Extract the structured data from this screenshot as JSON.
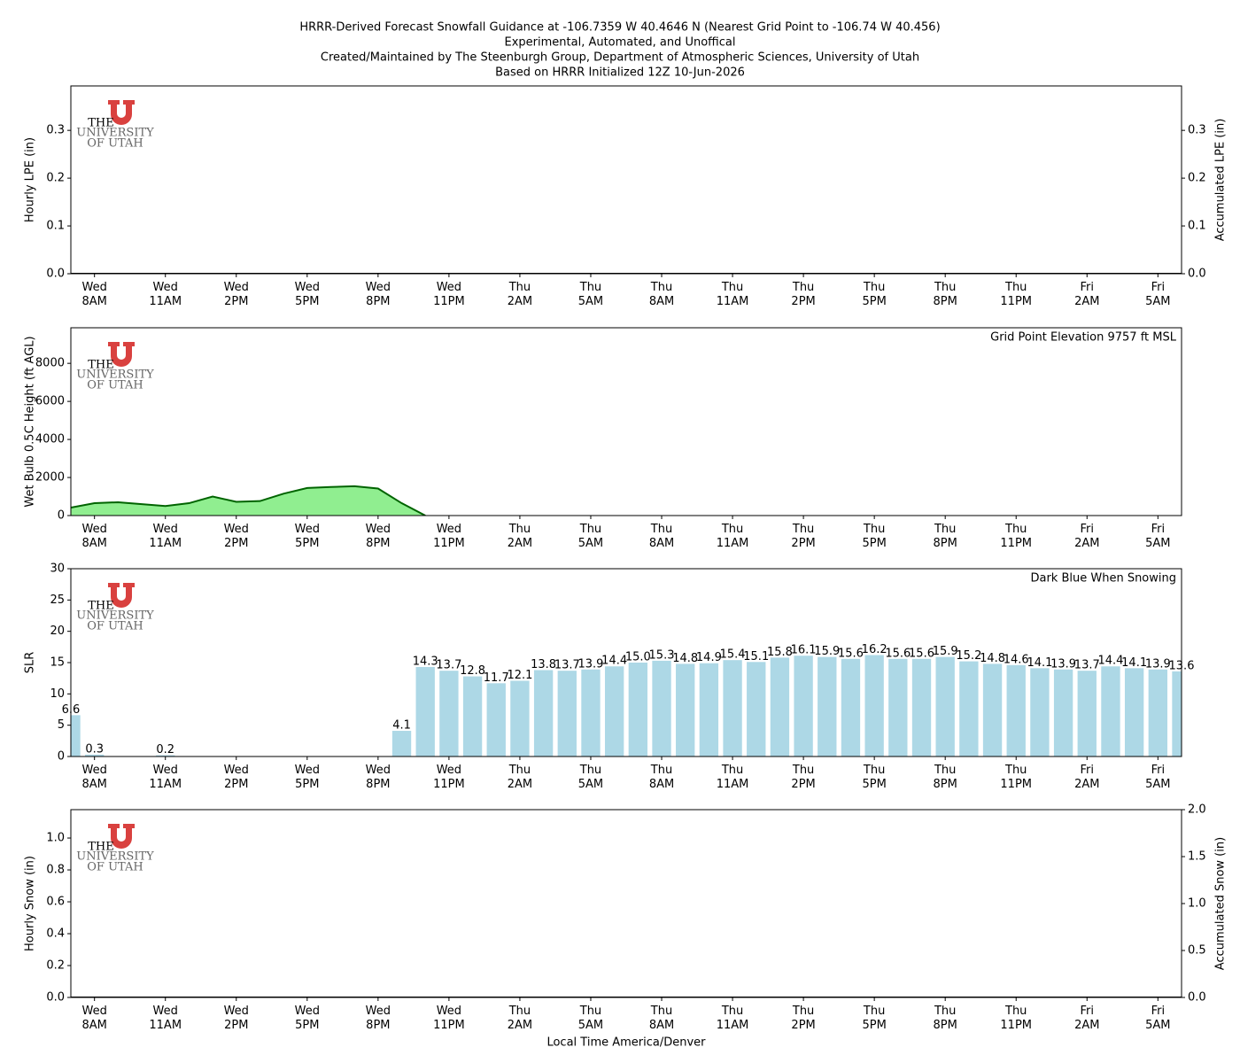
{
  "logo": {
    "line1": "THE",
    "line2": "UNIVERSITY",
    "line3": "OF UTAH"
  },
  "chart_data": [
    {
      "type": "line",
      "title": [
        "HRRR-Derived Forecast Snowfall Guidance at -106.7359 W 40.4646 N (Nearest Grid Point to -106.74 W 40.456)",
        "Experimental, Automated, and Unoffical",
        "Created/Maintained by The Steenburgh Group, Department of Atmospheric Sciences, University of Utah",
        "Based on HRRR Initialized 12Z 10-Jun-2026"
      ],
      "ylabel": "Hourly LPE (in)",
      "y2label": "Accumulated LPE (in)",
      "categories": [
        null,
        "Wed\n8AM",
        null,
        null,
        "Wed\n11AM",
        null,
        null,
        "Wed\n2PM",
        null,
        null,
        "Wed\n5PM",
        null,
        null,
        "Wed\n8PM",
        null,
        null,
        "Wed\n11PM",
        null,
        null,
        "Thu\n2AM",
        null,
        null,
        "Thu\n5AM",
        null,
        null,
        "Thu\n8AM",
        null,
        null,
        "Thu\n11AM",
        null,
        null,
        "Thu\n2PM",
        null,
        null,
        "Thu\n5PM",
        null,
        null,
        "Thu\n8PM",
        null,
        null,
        "Thu\n11PM",
        null,
        null,
        "Fri\n2AM",
        null,
        null,
        "Fri\n5AM",
        null
      ],
      "values": [
        0,
        0,
        0,
        0,
        0,
        0,
        0,
        0,
        0,
        0,
        0,
        0,
        0,
        0,
        0,
        0,
        0,
        0,
        0,
        0,
        0,
        0,
        0,
        0,
        0,
        0,
        0,
        0,
        0,
        0,
        0,
        0,
        0,
        0,
        0,
        0,
        0,
        0,
        0,
        0,
        0,
        0,
        0,
        0,
        0,
        0,
        0,
        0
      ],
      "color": "#000000",
      "ylim": [
        0,
        0.393
      ],
      "yticks": [
        {
          "value": 0,
          "label": "0.0"
        },
        0.1,
        0.2,
        0.3
      ],
      "y2lim": [
        0,
        0.393
      ],
      "y2ticks": [
        {
          "value": 0,
          "label": "0.0"
        },
        0.1,
        0.2,
        0.3
      ]
    },
    {
      "type": "area",
      "ylabel": "Wet Bulb 0.5C Height (ft AGL)",
      "annotation": "Grid Point Elevation 9757 ft MSL",
      "categories": [
        null,
        "Wed\n8AM",
        null,
        null,
        "Wed\n11AM",
        null,
        null,
        "Wed\n2PM",
        null,
        null,
        "Wed\n5PM",
        null,
        null,
        "Wed\n8PM",
        null,
        null,
        "Wed\n11PM",
        null,
        null,
        "Thu\n2AM",
        null,
        null,
        "Thu\n5AM",
        null,
        null,
        "Thu\n8AM",
        null,
        null,
        "Thu\n11AM",
        null,
        null,
        "Thu\n2PM",
        null,
        null,
        "Thu\n5PM",
        null,
        null,
        "Thu\n8PM",
        null,
        null,
        "Thu\n11PM",
        null,
        null,
        "Fri\n2AM",
        null,
        null,
        "Fri\n5AM",
        null
      ],
      "values": [
        420,
        650,
        700,
        600,
        500,
        650,
        1000,
        720,
        760,
        1150,
        1450,
        1500,
        1540,
        1420,
        650,
        0,
        null,
        null,
        null,
        null,
        null,
        null,
        null,
        null,
        null,
        null,
        null,
        null,
        null,
        null,
        null,
        null,
        null,
        null,
        null,
        null,
        null,
        null,
        null,
        null,
        null,
        null,
        null,
        null,
        null,
        null,
        null,
        null
      ],
      "color": "#90ee90",
      "edge_color": "#006400",
      "ylim": [
        0,
        9870
      ],
      "yticks": [
        0,
        2000,
        4000,
        6000,
        8000
      ]
    },
    {
      "type": "bar",
      "ylabel": "SLR",
      "annotation": "Dark Blue When Snowing",
      "categories": [
        null,
        "Wed\n8AM",
        null,
        null,
        "Wed\n11AM",
        null,
        null,
        "Wed\n2PM",
        null,
        null,
        "Wed\n5PM",
        null,
        null,
        "Wed\n8PM",
        null,
        null,
        "Wed\n11PM",
        null,
        null,
        "Thu\n2AM",
        null,
        null,
        "Thu\n5AM",
        null,
        null,
        "Thu\n8AM",
        null,
        null,
        "Thu\n11AM",
        null,
        null,
        "Thu\n2PM",
        null,
        null,
        "Thu\n5PM",
        null,
        null,
        "Thu\n8PM",
        null,
        null,
        "Thu\n11PM",
        null,
        null,
        "Fri\n2AM",
        null,
        null,
        "Fri\n5AM",
        null
      ],
      "values": [
        6.6,
        0.3,
        null,
        null,
        0.2,
        null,
        null,
        null,
        null,
        null,
        null,
        null,
        null,
        null,
        4.1,
        14.3,
        13.7,
        12.8,
        11.7,
        12.1,
        13.8,
        13.7,
        13.9,
        14.4,
        15.0,
        15.3,
        14.8,
        14.9,
        15.4,
        15.1,
        15.8,
        16.1,
        15.9,
        15.6,
        16.2,
        15.6,
        15.6,
        15.9,
        15.2,
        14.8,
        14.6,
        14.1,
        13.9,
        13.7,
        14.4,
        14.1,
        13.9,
        13.6
      ],
      "value_labels": [
        "6.6",
        "0.3",
        null,
        null,
        "0.2",
        null,
        null,
        null,
        null,
        null,
        null,
        null,
        null,
        null,
        "4.1",
        "14.3",
        "13.7",
        "12.8",
        "11.7",
        "12.1",
        "13.8",
        "13.7",
        "13.9",
        "14.4",
        "15.0",
        "15.3",
        "14.8",
        "14.9",
        "15.4",
        "15.1",
        "15.8",
        "16.1",
        "15.9",
        "15.6",
        "16.2",
        "15.6",
        "15.6",
        "15.9",
        "15.2",
        "14.8",
        "14.6",
        "14.1",
        "13.9",
        "13.7",
        "14.4",
        "14.1",
        "13.9",
        "13.6"
      ],
      "color": "#add8e6",
      "ylim": [
        0,
        30
      ],
      "yticks": [
        0,
        5,
        10,
        15,
        20,
        25,
        30
      ]
    },
    {
      "type": "line",
      "ylabel": "Hourly Snow (in)",
      "y2label": "Accumulated Snow (in)",
      "xlabel": "Local Time America/Denver",
      "categories": [
        null,
        "Wed\n8AM",
        null,
        null,
        "Wed\n11AM",
        null,
        null,
        "Wed\n2PM",
        null,
        null,
        "Wed\n5PM",
        null,
        null,
        "Wed\n8PM",
        null,
        null,
        "Wed\n11PM",
        null,
        null,
        "Thu\n2AM",
        null,
        null,
        "Thu\n5AM",
        null,
        null,
        "Thu\n8AM",
        null,
        null,
        "Thu\n11AM",
        null,
        null,
        "Thu\n2PM",
        null,
        null,
        "Thu\n5PM",
        null,
        null,
        "Thu\n8PM",
        null,
        null,
        "Thu\n11PM",
        null,
        null,
        "Fri\n2AM",
        null,
        null,
        "Fri\n5AM",
        null
      ],
      "values": [
        0,
        0,
        0,
        0,
        0,
        0,
        0,
        0,
        0,
        0,
        0,
        0,
        0,
        0,
        0,
        0,
        0,
        0,
        0,
        0,
        0,
        0,
        0,
        0,
        0,
        0,
        0,
        0,
        0,
        0,
        0,
        0,
        0,
        0,
        0,
        0,
        0,
        0,
        0,
        0,
        0,
        0,
        0,
        0,
        0,
        0,
        0,
        0
      ],
      "color": "#000000",
      "ylim": [
        0,
        1.178
      ],
      "yticks": [
        {
          "value": 0,
          "label": "0.0"
        },
        0.2,
        0.4,
        0.6,
        0.8,
        {
          "value": 1,
          "label": "1.0"
        }
      ],
      "y2lim": [
        0,
        2
      ],
      "y2ticks": [
        {
          "value": 0,
          "label": "0.0"
        },
        0.5,
        {
          "value": 1,
          "label": "1.0"
        },
        1.5,
        {
          "value": 2,
          "label": "2.0"
        }
      ]
    }
  ]
}
